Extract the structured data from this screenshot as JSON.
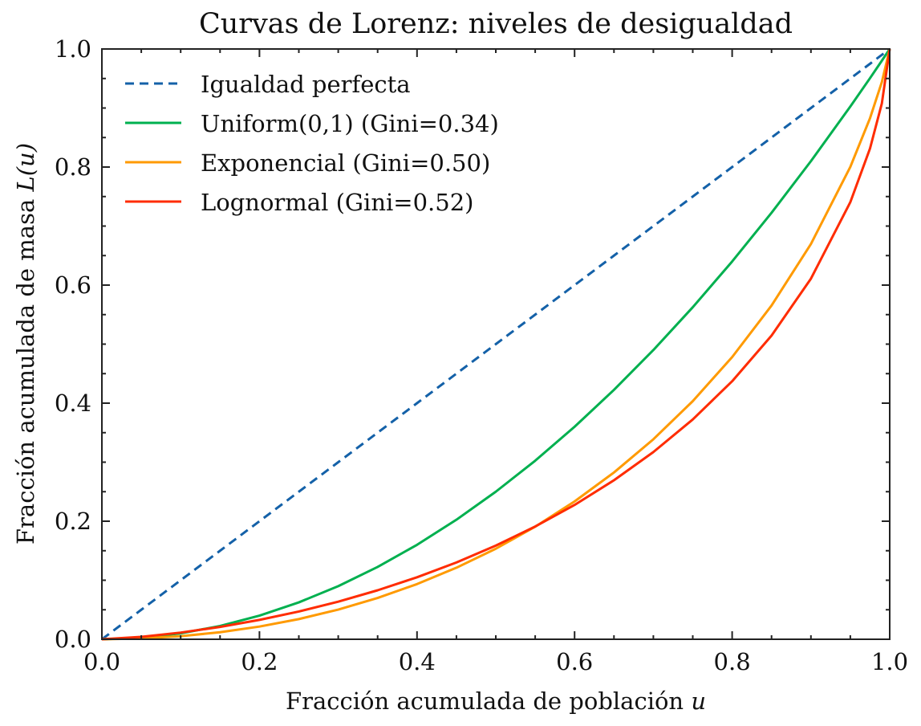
{
  "chart_data": {
    "type": "line",
    "title": "Curvas de Lorenz: niveles de desigualdad",
    "xlabel": "Fracción acumulada de población",
    "xlabel_var": "u",
    "ylabel": "Fracción acumulada de masa",
    "ylabel_var": "L(u)",
    "xlim": [
      0,
      1
    ],
    "ylim": [
      0,
      1
    ],
    "grid": false,
    "legend_position": "top-left",
    "x_ticks": [
      "0.0",
      "0.2",
      "0.4",
      "0.6",
      "0.8",
      "1.0"
    ],
    "y_ticks": [
      "0.0",
      "0.2",
      "0.4",
      "0.6",
      "0.8",
      "1.0"
    ],
    "x_tick_values": [
      0,
      0.2,
      0.4,
      0.6,
      0.8,
      1.0
    ],
    "y_tick_values": [
      0,
      0.2,
      0.4,
      0.6,
      0.8,
      1.0
    ],
    "x": [
      0,
      0.05,
      0.1,
      0.15,
      0.2,
      0.25,
      0.3,
      0.35,
      0.4,
      0.45,
      0.5,
      0.55,
      0.6,
      0.65,
      0.7,
      0.75,
      0.8,
      0.85,
      0.9,
      0.95,
      0.975,
      0.99,
      1.0
    ],
    "series": [
      {
        "name": "Igualdad perfecta",
        "color": "#1461a8",
        "style": "dashed",
        "values": [
          0,
          0.05,
          0.1,
          0.15,
          0.2,
          0.25,
          0.3,
          0.35,
          0.4,
          0.45,
          0.5,
          0.55,
          0.6,
          0.65,
          0.7,
          0.75,
          0.8,
          0.85,
          0.9,
          0.95,
          0.975,
          0.99,
          1.0
        ]
      },
      {
        "name": "Uniform(0,1) (Gini=0.34)",
        "color": "#00b04f",
        "style": "solid",
        "values": [
          0,
          0.0025,
          0.01,
          0.0225,
          0.04,
          0.0625,
          0.09,
          0.1225,
          0.16,
          0.2025,
          0.25,
          0.3025,
          0.36,
          0.4225,
          0.49,
          0.5625,
          0.64,
          0.7225,
          0.81,
          0.9025,
          0.9506,
          0.9801,
          1.0
        ]
      },
      {
        "name": "Exponencial (Gini=0.50)",
        "color": "#ff9a00",
        "style": "solid",
        "values": [
          0,
          0.0013,
          0.0052,
          0.0119,
          0.0215,
          0.0342,
          0.0503,
          0.07,
          0.0935,
          0.1212,
          0.1534,
          0.1907,
          0.2335,
          0.2826,
          0.3388,
          0.4034,
          0.4781,
          0.5654,
          0.6697,
          0.8002,
          0.8828,
          0.9439,
          1.0
        ]
      },
      {
        "name": "Lognormal (Gini=0.52)",
        "color": "#ff2c00",
        "style": "solid",
        "values": [
          0,
          0.0041,
          0.0113,
          0.0209,
          0.0328,
          0.047,
          0.0637,
          0.083,
          0.105,
          0.1301,
          0.1587,
          0.191,
          0.2276,
          0.2694,
          0.3172,
          0.3724,
          0.4371,
          0.5145,
          0.6109,
          0.7405,
          0.8315,
          0.9076,
          1.0
        ]
      }
    ]
  }
}
